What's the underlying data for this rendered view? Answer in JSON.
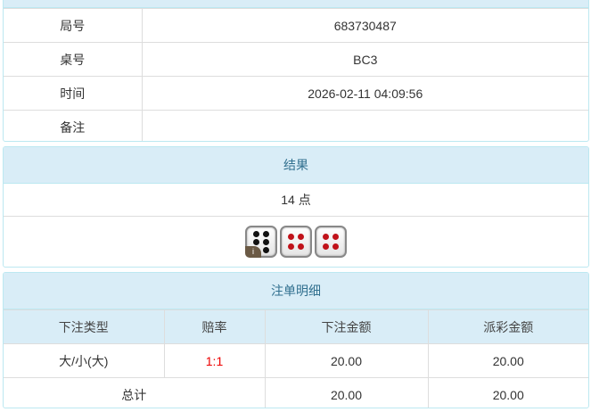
{
  "info": {
    "rows": [
      {
        "label": "局号",
        "value": "683730487"
      },
      {
        "label": "桌号",
        "value": "BC3"
      },
      {
        "label": "时间",
        "value": "2026-02-11 04:09:56"
      },
      {
        "label": "备注",
        "value": ""
      }
    ]
  },
  "result": {
    "title": "结果",
    "points": "14 点",
    "dice": [
      6,
      4,
      4
    ],
    "info_badge": "i",
    "pip_colors": {
      "six": "#111111",
      "four": "#c0121a"
    }
  },
  "bets": {
    "title": "注单明细",
    "headers": [
      "下注类型",
      "赔率",
      "下注金额",
      "派彩金额"
    ],
    "rows": [
      {
        "type": "大/小(大)",
        "odds": "1:1",
        "amount": "20.00",
        "payout": "20.00"
      }
    ],
    "total": {
      "label": "总计",
      "amount": "20.00",
      "payout": "20.00"
    }
  }
}
